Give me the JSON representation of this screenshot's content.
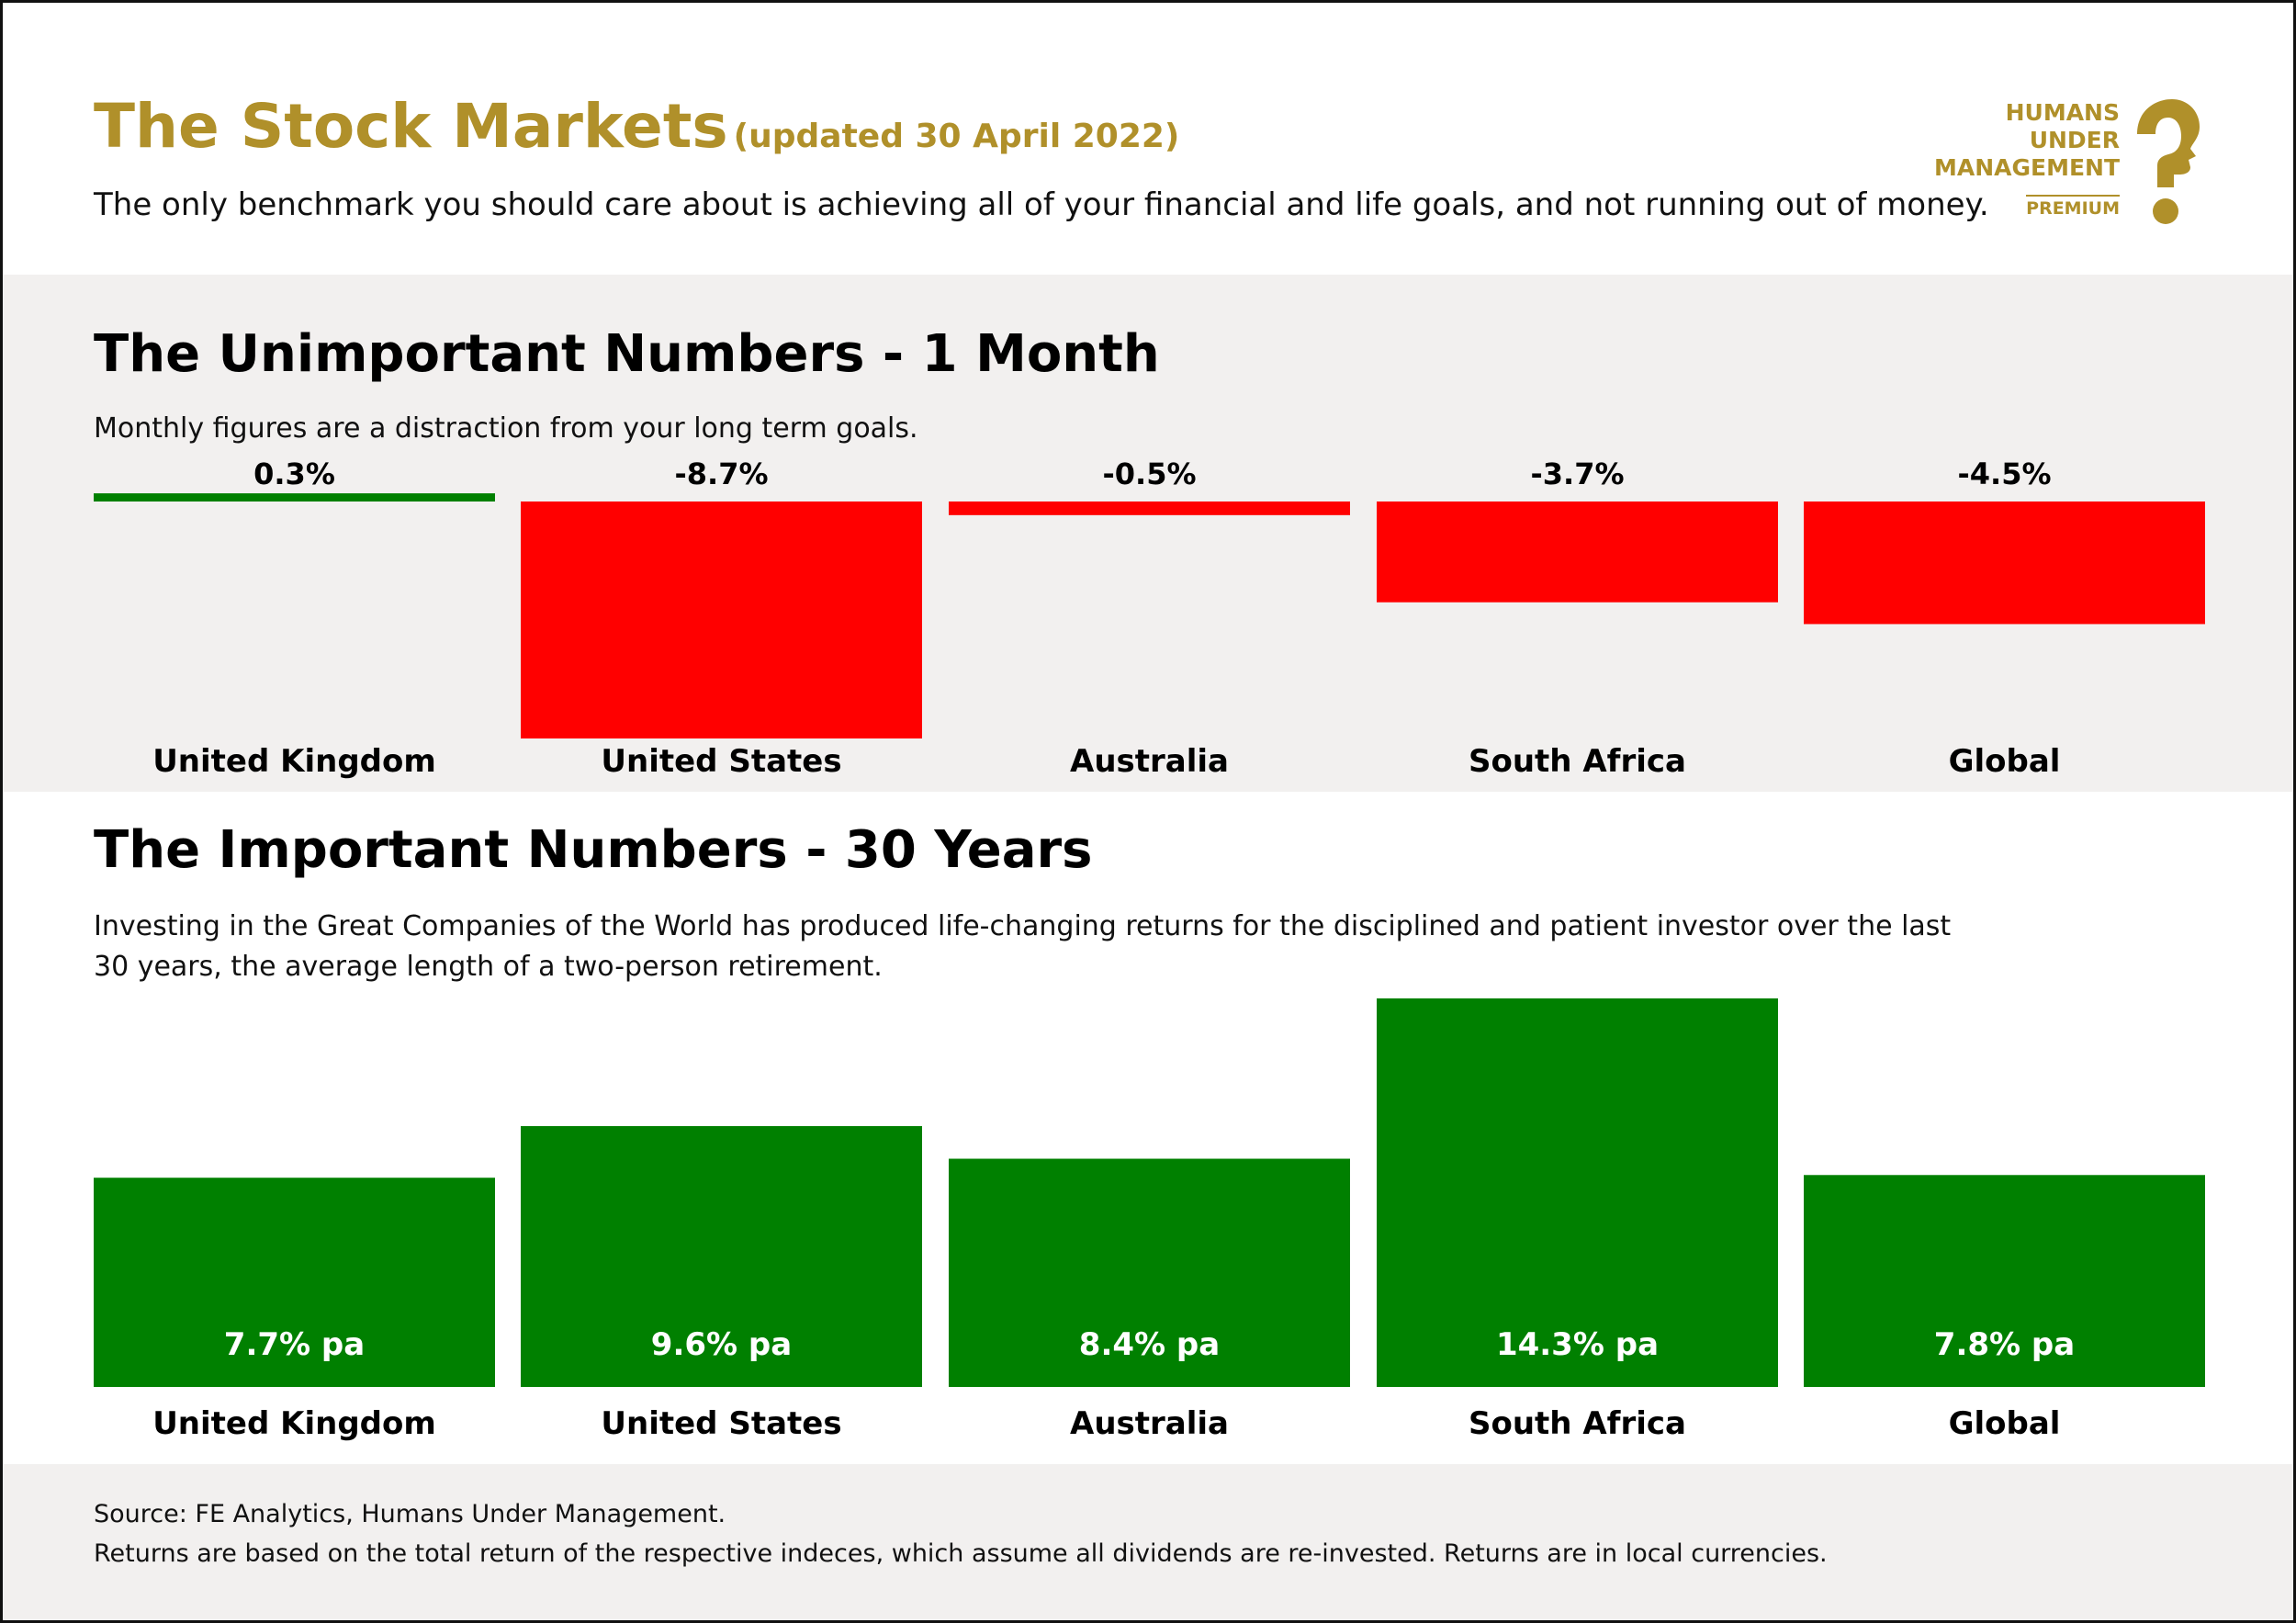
{
  "header": {
    "title": "The Stock Markets",
    "updated": "(updated 30 April 2022)",
    "tagline": "The only benchmark you should care about is achieving all of your financial and life goals, and not running out of money."
  },
  "logo": {
    "line1": "HUMANS",
    "line2": "UNDER",
    "line3": "MANAGEMENT",
    "premium": "PREMIUM"
  },
  "monthly": {
    "title": "The Unimportant Numbers - 1 Month",
    "subtitle": "Monthly figures are a distraction from your long term goals."
  },
  "long_term": {
    "title": "The Important Numbers - 30 Years",
    "subtitle_line1": "Investing in the Great Companies of the World has produced life-changing returns for the disciplined and patient investor over the last",
    "subtitle_line2": "30 years, the average length of a two-person retirement."
  },
  "footer": {
    "source": "Source: FE Analytics, Humans Under Management.",
    "note": "Returns are based on the total return of the respective indeces, which assume all dividends are re-invested. Returns are in local currencies."
  },
  "colors": {
    "gold": "#b0902a",
    "positive": "#008000",
    "negative": "#ff0000",
    "band": "#f2f0ef"
  },
  "chart_data": [
    {
      "type": "bar",
      "categories": [
        "United Kingdom",
        "United States",
        "Australia",
        "South Africa",
        "Global"
      ],
      "values": [
        0.3,
        -8.7,
        -0.5,
        -3.7,
        -4.5
      ],
      "labels": [
        "0.3%",
        "-8.7%",
        "-0.5%",
        "-3.7%",
        "-4.5%"
      ],
      "title": "The Unimportant Numbers - 1 Month",
      "xlabel": "",
      "ylabel": "",
      "ylim": [
        -8.7,
        0.3
      ],
      "grid": false
    },
    {
      "type": "bar",
      "categories": [
        "United Kingdom",
        "United States",
        "Australia",
        "South Africa",
        "Global"
      ],
      "values": [
        7.7,
        9.6,
        8.4,
        14.3,
        7.8
      ],
      "labels": [
        "7.7% pa",
        "9.6% pa",
        "8.4% pa",
        "14.3% pa",
        "7.8% pa"
      ],
      "title": "The Important Numbers - 30 Years",
      "xlabel": "",
      "ylabel": "",
      "ylim": [
        0,
        14.3
      ],
      "grid": false
    }
  ]
}
